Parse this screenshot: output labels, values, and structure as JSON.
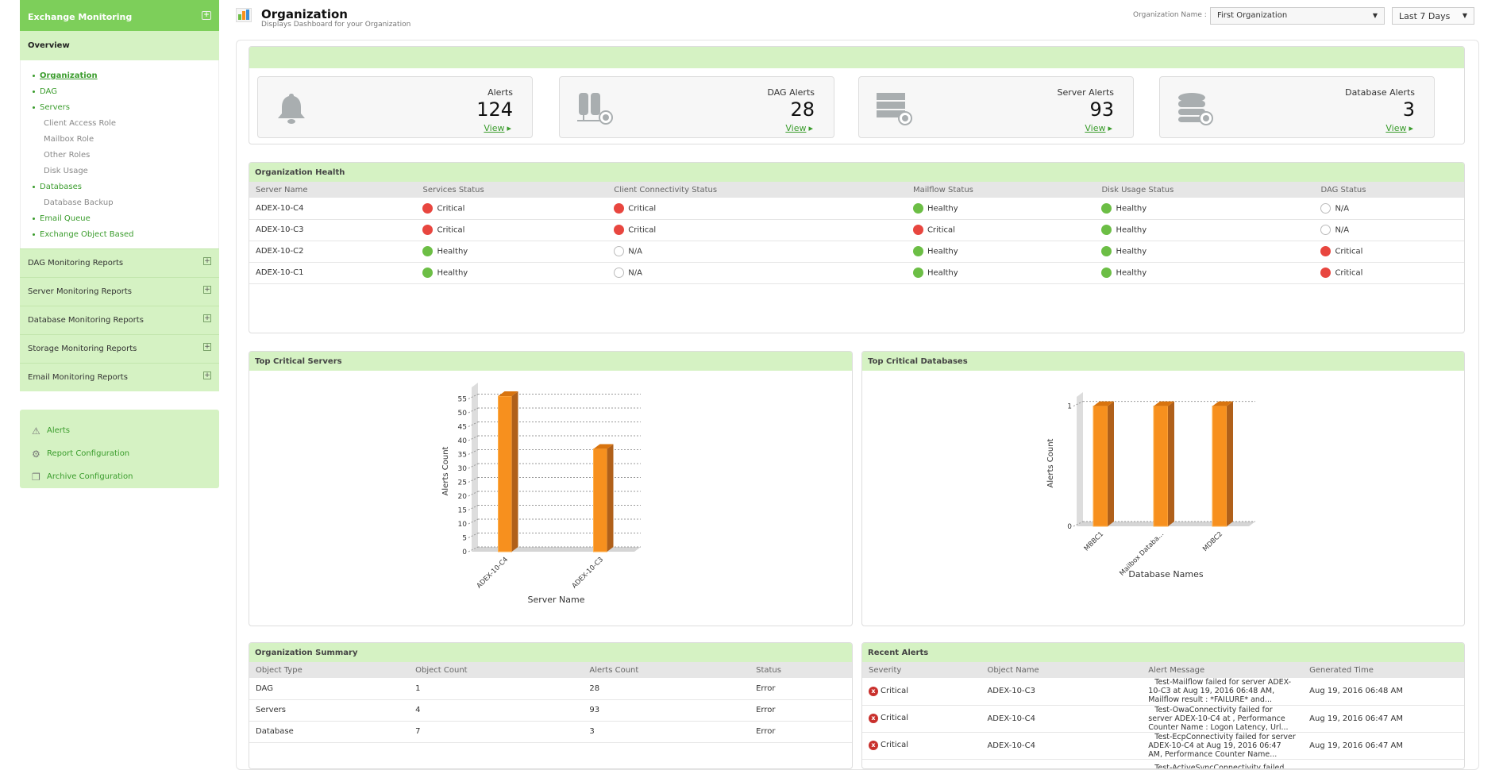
{
  "sidebar": {
    "title": "Exchange Monitoring",
    "overview": "Overview",
    "links": [
      {
        "label": "Organization",
        "type": "link",
        "active": true
      },
      {
        "label": "DAG",
        "type": "link"
      },
      {
        "label": "Servers",
        "type": "link"
      },
      {
        "label": "Client Access Role",
        "type": "sub"
      },
      {
        "label": "Mailbox Role",
        "type": "sub"
      },
      {
        "label": "Other Roles",
        "type": "sub"
      },
      {
        "label": "Disk Usage",
        "type": "sub"
      },
      {
        "label": "Databases",
        "type": "link"
      },
      {
        "label": "Database Backup",
        "type": "sub"
      },
      {
        "label": "Email Queue",
        "type": "link"
      },
      {
        "label": "Exchange Object Based",
        "type": "link"
      }
    ],
    "reports": [
      "DAG Monitoring Reports",
      "Server Monitoring Reports",
      "Database Monitoring Reports",
      "Storage Monitoring Reports",
      "Email Monitoring Reports"
    ],
    "tools": [
      {
        "label": "Alerts",
        "icon": "warning-icon"
      },
      {
        "label": "Report Configuration",
        "icon": "report-config-icon"
      },
      {
        "label": "Archive Configuration",
        "icon": "archive-config-icon"
      }
    ]
  },
  "header": {
    "title": "Organization",
    "subtitle": "Displays Dashboard for your Organization",
    "org_label": "Organization Name :",
    "org_value": "First Organization",
    "period_value": "Last 7 Days"
  },
  "cards": [
    {
      "label": "Alerts",
      "value": "124",
      "link": "View",
      "icon": "bell-icon"
    },
    {
      "label": "DAG Alerts",
      "value": "28",
      "link": "View",
      "icon": "dag-icon"
    },
    {
      "label": "Server Alerts",
      "value": "93",
      "link": "View",
      "icon": "server-icon"
    },
    {
      "label": "Database Alerts",
      "value": "3",
      "link": "View",
      "icon": "database-icon"
    }
  ],
  "health": {
    "title": "Organization Health",
    "columns": [
      "Server Name",
      "Services Status",
      "Client Connectivity Status",
      "Mailflow Status",
      "Disk Usage Status",
      "DAG Status"
    ],
    "rows": [
      [
        "ADEX-10-C4",
        "Critical",
        "Critical",
        "Healthy",
        "Healthy",
        "N/A"
      ],
      [
        "ADEX-10-C3",
        "Critical",
        "Critical",
        "Critical",
        "Healthy",
        "N/A"
      ],
      [
        "ADEX-10-C2",
        "Healthy",
        "N/A",
        "Healthy",
        "Healthy",
        "Critical"
      ],
      [
        "ADEX-10-C1",
        "Healthy",
        "N/A",
        "Healthy",
        "Healthy",
        "Critical"
      ]
    ]
  },
  "chart_data": [
    {
      "type": "bar",
      "title": "Top Critical Servers",
      "categories": [
        "ADEX-10-C4",
        "ADEX-10-C3"
      ],
      "values": [
        56,
        37
      ],
      "xlabel": "Server Name",
      "ylabel": "Alerts Count",
      "ylim": [
        0,
        58
      ],
      "yticks": [
        0,
        5,
        10,
        15,
        20,
        25,
        30,
        35,
        40,
        45,
        50,
        55
      ],
      "color": "#f7901e"
    },
    {
      "type": "bar",
      "title": "Top Critical Databases",
      "categories": [
        "MBBC1",
        "Mailbox Databa...",
        "MDBC2"
      ],
      "values": [
        1,
        1,
        1
      ],
      "xlabel": "Database Names",
      "ylabel": "Alerts Count",
      "ylim": [
        0,
        1.05
      ],
      "yticks": [
        0,
        1
      ],
      "color": "#f7901e"
    }
  ],
  "summary": {
    "title": "Organization Summary",
    "columns": [
      "Object Type",
      "Object Count",
      "Alerts Count",
      "Status"
    ],
    "rows": [
      [
        "DAG",
        "1",
        "28",
        "Error"
      ],
      [
        "Servers",
        "4",
        "93",
        "Error"
      ],
      [
        "Database",
        "7",
        "3",
        "Error"
      ]
    ]
  },
  "recent": {
    "title": "Recent Alerts",
    "columns": [
      "Severity",
      "Object Name",
      "Alert Message",
      "Generated Time"
    ],
    "rows": [
      [
        "Critical",
        "ADEX-10-C3",
        "Test-Mailflow failed for server ADEX-10-C3 at Aug 19, 2016 06:48 AM, Mailflow result : *FAILURE* and...",
        "Aug 19, 2016 06:48 AM"
      ],
      [
        "Critical",
        "ADEX-10-C4",
        "Test-OwaConnectivity failed for server ADEX-10-C4 at , Performance Counter Name : Logon Latency, Url...",
        "Aug 19, 2016 06:47 AM"
      ],
      [
        "Critical",
        "ADEX-10-C4",
        "Test-EcpConnectivity failed for server ADEX-10-C4 at Aug 19, 2016 06:47 AM, Performance Counter Name...",
        "Aug 19, 2016 06:47 AM"
      ],
      [
        "",
        "",
        "Test-ActiveSyncConnectivity failed for",
        ""
      ]
    ]
  },
  "colors": {
    "accent": "#7dcf5a",
    "light": "#d5f2c3",
    "link": "#3a9c2c",
    "critical": "#e8463f",
    "healthy": "#6cbe45",
    "bar": "#f7901e"
  }
}
